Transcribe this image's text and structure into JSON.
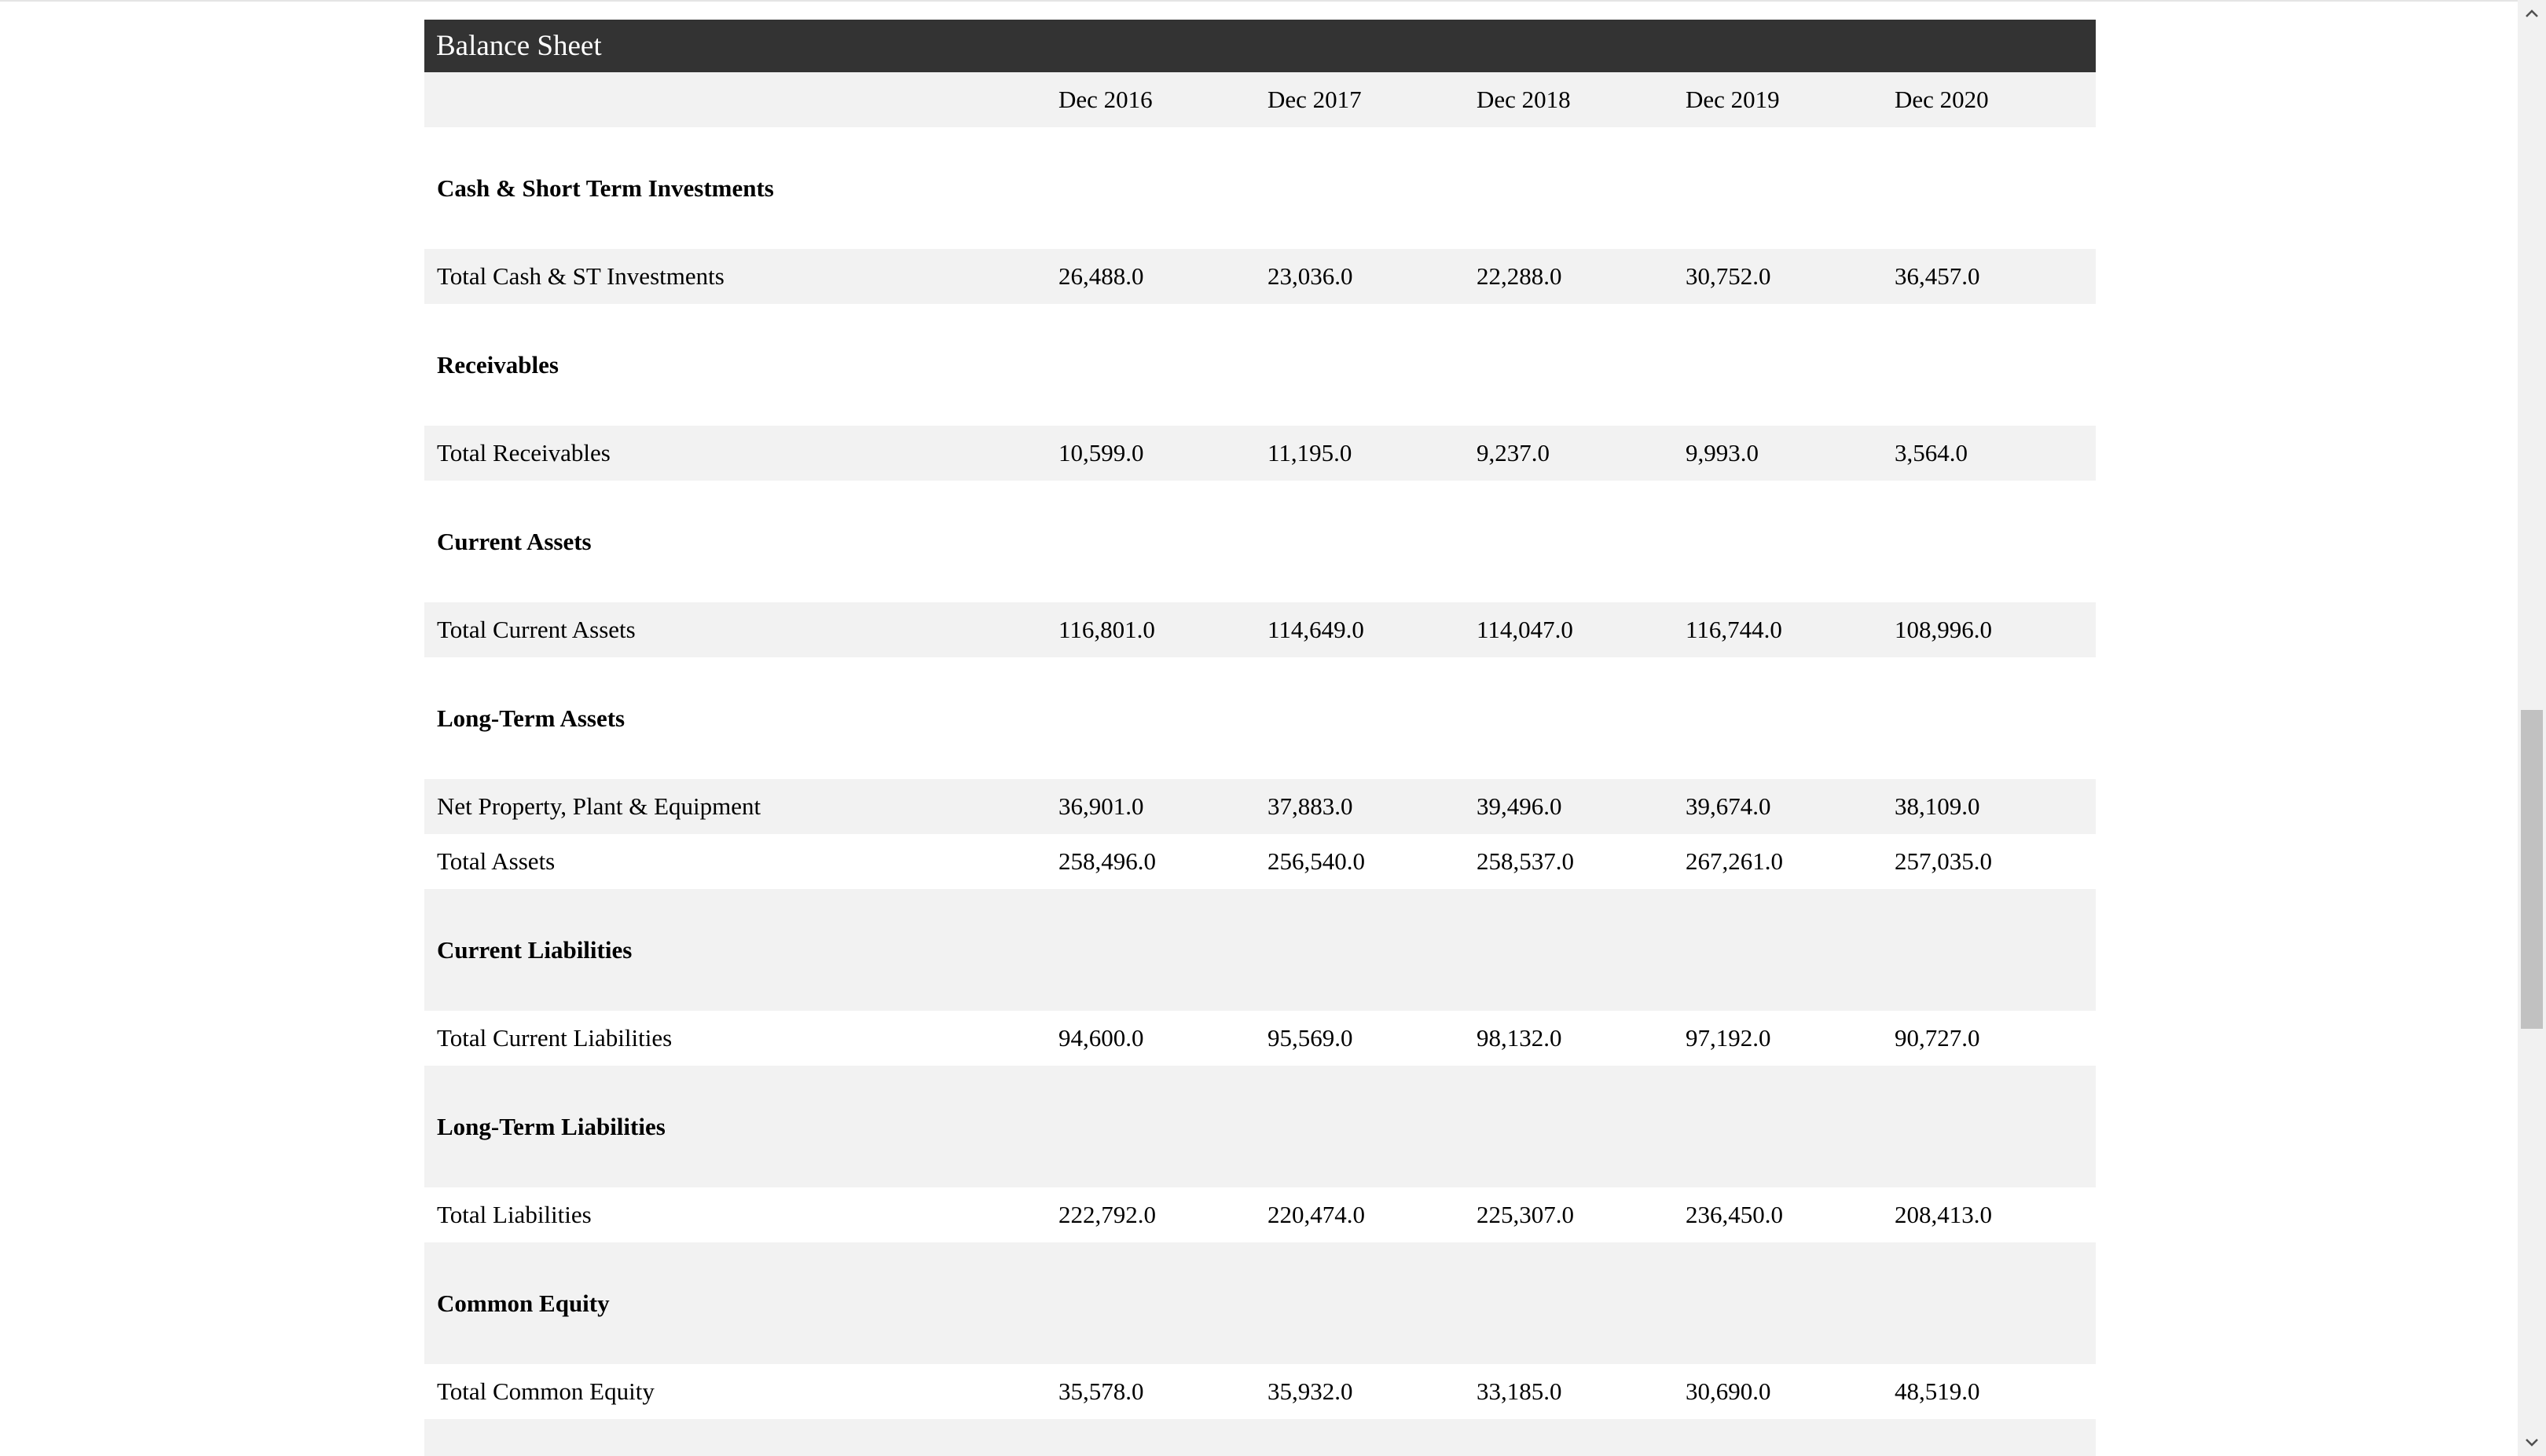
{
  "balance_sheet": {
    "title": "Balance Sheet",
    "columns": [
      "Dec 2016",
      "Dec 2017",
      "Dec 2018",
      "Dec 2019",
      "Dec 2020"
    ],
    "rows": [
      {
        "label": "Cash & Short Term Investments",
        "kind": "section",
        "values": [
          "",
          "",
          "",
          "",
          ""
        ]
      },
      {
        "label": "Total Cash & ST Investments",
        "kind": "data",
        "values": [
          "26,488.0",
          "23,036.0",
          "22,288.0",
          "30,752.0",
          "36,457.0"
        ]
      },
      {
        "label": "Receivables",
        "kind": "section",
        "values": [
          "",
          "",
          "",
          "",
          ""
        ]
      },
      {
        "label": "Total Receivables",
        "kind": "data",
        "values": [
          "10,599.0",
          "11,195.0",
          "9,237.0",
          "9,993.0",
          "3,564.0"
        ]
      },
      {
        "label": "Current Assets",
        "kind": "section",
        "values": [
          "",
          "",
          "",
          "",
          ""
        ]
      },
      {
        "label": "Total Current Assets",
        "kind": "data",
        "values": [
          "116,801.0",
          "114,649.0",
          "114,047.0",
          "116,744.0",
          "108,996.0"
        ]
      },
      {
        "label": "Long-Term Assets",
        "kind": "section",
        "values": [
          "",
          "",
          "",
          "",
          ""
        ]
      },
      {
        "label": "Net Property, Plant & Equipment",
        "kind": "data",
        "values": [
          "36,901.0",
          "37,883.0",
          "39,496.0",
          "39,674.0",
          "38,109.0"
        ]
      },
      {
        "label": "Total Assets",
        "kind": "data",
        "values": [
          "258,496.0",
          "256,540.0",
          "258,537.0",
          "267,261.0",
          "257,035.0"
        ]
      },
      {
        "label": "Current Liabilities",
        "kind": "section",
        "values": [
          "",
          "",
          "",
          "",
          ""
        ]
      },
      {
        "label": "Total Current Liabilities",
        "kind": "data",
        "values": [
          "94,600.0",
          "95,569.0",
          "98,132.0",
          "97,192.0",
          "90,727.0"
        ]
      },
      {
        "label": "Long-Term Liabilities",
        "kind": "section",
        "values": [
          "",
          "",
          "",
          "",
          ""
        ]
      },
      {
        "label": "Total Liabilities",
        "kind": "data",
        "values": [
          "222,792.0",
          "220,474.0",
          "225,307.0",
          "236,450.0",
          "208,413.0"
        ]
      },
      {
        "label": "Common Equity",
        "kind": "section",
        "values": [
          "",
          "",
          "",
          "",
          ""
        ]
      },
      {
        "label": "Total Common Equity",
        "kind": "data",
        "values": [
          "35,578.0",
          "35,932.0",
          "33,185.0",
          "30,690.0",
          "48,519.0"
        ]
      },
      {
        "label": "",
        "kind": "data",
        "values": [
          "",
          "",
          "",
          "",
          ""
        ]
      }
    ]
  },
  "scrollbar": {
    "up_icon": "chevron-up-icon",
    "down_icon": "chevron-down-icon"
  },
  "colors": {
    "title_bar": "#333333",
    "row_shade": "#f2f2f2"
  }
}
